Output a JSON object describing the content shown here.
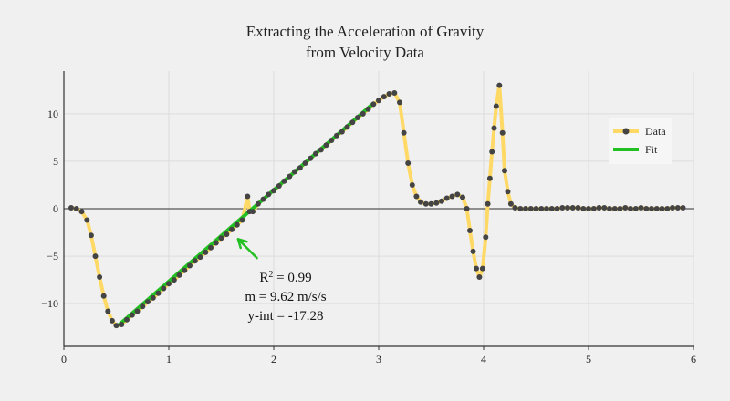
{
  "chart_data": {
    "type": "line",
    "title": [
      "Extracting the Acceleration of Gravity",
      "from Velocity Data"
    ],
    "xlabel": "",
    "ylabel": "",
    "xlim": [
      0,
      6
    ],
    "ylim": [
      -14.5,
      14.5
    ],
    "x_ticks": [
      0,
      1,
      2,
      3,
      4,
      5,
      6
    ],
    "y_ticks": [
      10,
      5,
      0,
      -5,
      -10
    ],
    "y_tick_labels": [
      "10",
      "5",
      "0",
      "−5",
      "−10"
    ],
    "grid": true,
    "legend_position": "top-right",
    "series": [
      {
        "name": "Data",
        "color": "#ffd966",
        "marker_color": "#444444",
        "points": [
          [
            0.07,
            0.1
          ],
          [
            0.12,
            0.0
          ],
          [
            0.17,
            -0.3
          ],
          [
            0.22,
            -1.2
          ],
          [
            0.26,
            -2.8
          ],
          [
            0.3,
            -5.0
          ],
          [
            0.34,
            -7.2
          ],
          [
            0.38,
            -9.2
          ],
          [
            0.42,
            -10.8
          ],
          [
            0.46,
            -11.8
          ],
          [
            0.5,
            -12.3
          ],
          [
            0.55,
            -12.2
          ],
          [
            0.6,
            -11.7
          ],
          [
            0.65,
            -11.2
          ],
          [
            0.7,
            -10.8
          ],
          [
            0.75,
            -10.3
          ],
          [
            0.8,
            -9.8
          ],
          [
            0.85,
            -9.4
          ],
          [
            0.9,
            -8.9
          ],
          [
            0.95,
            -8.4
          ],
          [
            1.0,
            -7.9
          ],
          [
            1.05,
            -7.5
          ],
          [
            1.1,
            -7.0
          ],
          [
            1.15,
            -6.5
          ],
          [
            1.2,
            -6.0
          ],
          [
            1.25,
            -5.5
          ],
          [
            1.3,
            -5.1
          ],
          [
            1.35,
            -4.6
          ],
          [
            1.4,
            -4.1
          ],
          [
            1.45,
            -3.6
          ],
          [
            1.5,
            -3.1
          ],
          [
            1.55,
            -2.7
          ],
          [
            1.6,
            -2.2
          ],
          [
            1.65,
            -1.7
          ],
          [
            1.7,
            -1.2
          ],
          [
            1.75,
            1.3
          ],
          [
            1.77,
            -0.3
          ],
          [
            1.8,
            -0.3
          ],
          [
            1.85,
            0.5
          ],
          [
            1.9,
            1.0
          ],
          [
            1.95,
            1.5
          ],
          [
            2.0,
            1.9
          ],
          [
            2.05,
            2.4
          ],
          [
            2.1,
            2.9
          ],
          [
            2.15,
            3.4
          ],
          [
            2.2,
            3.9
          ],
          [
            2.25,
            4.3
          ],
          [
            2.3,
            4.8
          ],
          [
            2.35,
            5.3
          ],
          [
            2.4,
            5.8
          ],
          [
            2.45,
            6.2
          ],
          [
            2.5,
            6.7
          ],
          [
            2.55,
            7.2
          ],
          [
            2.6,
            7.7
          ],
          [
            2.65,
            8.1
          ],
          [
            2.7,
            8.6
          ],
          [
            2.75,
            9.1
          ],
          [
            2.8,
            9.6
          ],
          [
            2.85,
            10.0
          ],
          [
            2.9,
            10.5
          ],
          [
            2.95,
            11.0
          ],
          [
            3.0,
            11.4
          ],
          [
            3.05,
            11.8
          ],
          [
            3.1,
            12.1
          ],
          [
            3.15,
            12.2
          ],
          [
            3.2,
            11.2
          ],
          [
            3.24,
            8.0
          ],
          [
            3.28,
            4.8
          ],
          [
            3.32,
            2.5
          ],
          [
            3.36,
            1.3
          ],
          [
            3.4,
            0.7
          ],
          [
            3.45,
            0.5
          ],
          [
            3.5,
            0.5
          ],
          [
            3.55,
            0.6
          ],
          [
            3.6,
            0.8
          ],
          [
            3.65,
            1.1
          ],
          [
            3.7,
            1.3
          ],
          [
            3.75,
            1.5
          ],
          [
            3.8,
            1.2
          ],
          [
            3.84,
            0.0
          ],
          [
            3.87,
            -2.3
          ],
          [
            3.9,
            -4.5
          ],
          [
            3.93,
            -6.3
          ],
          [
            3.96,
            -7.2
          ],
          [
            3.99,
            -6.3
          ],
          [
            4.02,
            -3.0
          ],
          [
            4.04,
            0.5
          ],
          [
            4.06,
            3.2
          ],
          [
            4.08,
            6.0
          ],
          [
            4.1,
            8.5
          ],
          [
            4.12,
            10.8
          ],
          [
            4.15,
            13.0
          ],
          [
            4.18,
            8.0
          ],
          [
            4.2,
            4.0
          ],
          [
            4.23,
            1.8
          ],
          [
            4.26,
            0.5
          ],
          [
            4.3,
            0.1
          ],
          [
            4.35,
            0.0
          ],
          [
            4.4,
            0.0
          ],
          [
            4.45,
            0.0
          ],
          [
            4.5,
            0.0
          ],
          [
            4.55,
            0.0
          ],
          [
            4.6,
            0.0
          ],
          [
            4.65,
            0.0
          ],
          [
            4.7,
            0.0
          ],
          [
            4.75,
            0.1
          ],
          [
            4.8,
            0.1
          ],
          [
            4.85,
            0.1
          ],
          [
            4.9,
            0.1
          ],
          [
            4.95,
            0.0
          ],
          [
            5.0,
            0.0
          ],
          [
            5.05,
            0.0
          ],
          [
            5.1,
            0.1
          ],
          [
            5.15,
            0.1
          ],
          [
            5.2,
            0.0
          ],
          [
            5.25,
            0.0
          ],
          [
            5.3,
            0.0
          ],
          [
            5.35,
            0.1
          ],
          [
            5.4,
            0.0
          ],
          [
            5.45,
            0.0
          ],
          [
            5.5,
            0.1
          ],
          [
            5.55,
            0.0
          ],
          [
            5.6,
            0.0
          ],
          [
            5.65,
            0.0
          ],
          [
            5.7,
            0.0
          ],
          [
            5.75,
            0.0
          ],
          [
            5.8,
            0.1
          ],
          [
            5.85,
            0.1
          ],
          [
            5.9,
            0.1
          ]
        ]
      },
      {
        "name": "Fit",
        "color": "#22c022",
        "slope": 9.62,
        "intercept": -17.28,
        "x_range": [
          0.53,
          2.95
        ]
      }
    ],
    "annotation": {
      "text_r2_base": "R",
      "text_r2_sup": "2",
      "text_r2_value": " = 0.99",
      "text_slope": "m = 9.62 m/s/s",
      "text_intercept": "y-int = -17.28",
      "arrow_color": "#22c022",
      "arrow_tip": [
        1.66,
        -3.2
      ],
      "arrow_tail": [
        1.84,
        -5.2
      ]
    }
  }
}
